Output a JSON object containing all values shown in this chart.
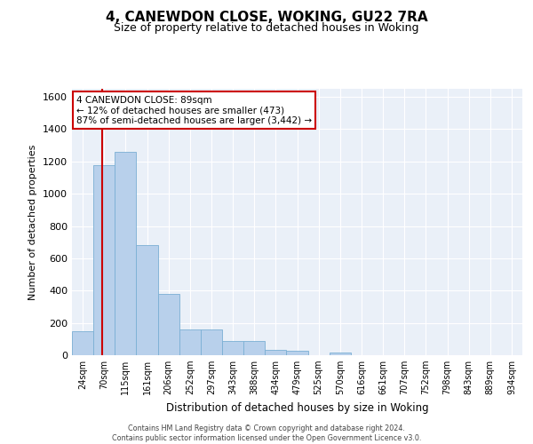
{
  "title_line1": "4, CANEWDON CLOSE, WOKING, GU22 7RA",
  "title_line2": "Size of property relative to detached houses in Woking",
  "xlabel": "Distribution of detached houses by size in Woking",
  "ylabel": "Number of detached properties",
  "bar_color": "#b8d0eb",
  "bar_edge_color": "#7aafd4",
  "categories": [
    "24sqm",
    "70sqm",
    "115sqm",
    "161sqm",
    "206sqm",
    "252sqm",
    "297sqm",
    "343sqm",
    "388sqm",
    "434sqm",
    "479sqm",
    "525sqm",
    "570sqm",
    "616sqm",
    "661sqm",
    "707sqm",
    "752sqm",
    "798sqm",
    "843sqm",
    "889sqm",
    "934sqm"
  ],
  "values": [
    150,
    1175,
    1260,
    680,
    380,
    160,
    160,
    90,
    90,
    35,
    25,
    0,
    15,
    0,
    0,
    0,
    0,
    0,
    0,
    0,
    0
  ],
  "vline_color": "#cc0000",
  "vline_x_index": 1.422,
  "annotation_text": "4 CANEWDON CLOSE: 89sqm\n← 12% of detached houses are smaller (473)\n87% of semi-detached houses are larger (3,442) →",
  "annotation_box_color": "#cc0000",
  "ylim": [
    0,
    1650
  ],
  "yticks": [
    0,
    200,
    400,
    600,
    800,
    1000,
    1200,
    1400,
    1600
  ],
  "background_color": "#eaf0f8",
  "grid_color": "#ffffff",
  "footer_line1": "Contains HM Land Registry data © Crown copyright and database right 2024.",
  "footer_line2": "Contains public sector information licensed under the Open Government Licence v3.0."
}
